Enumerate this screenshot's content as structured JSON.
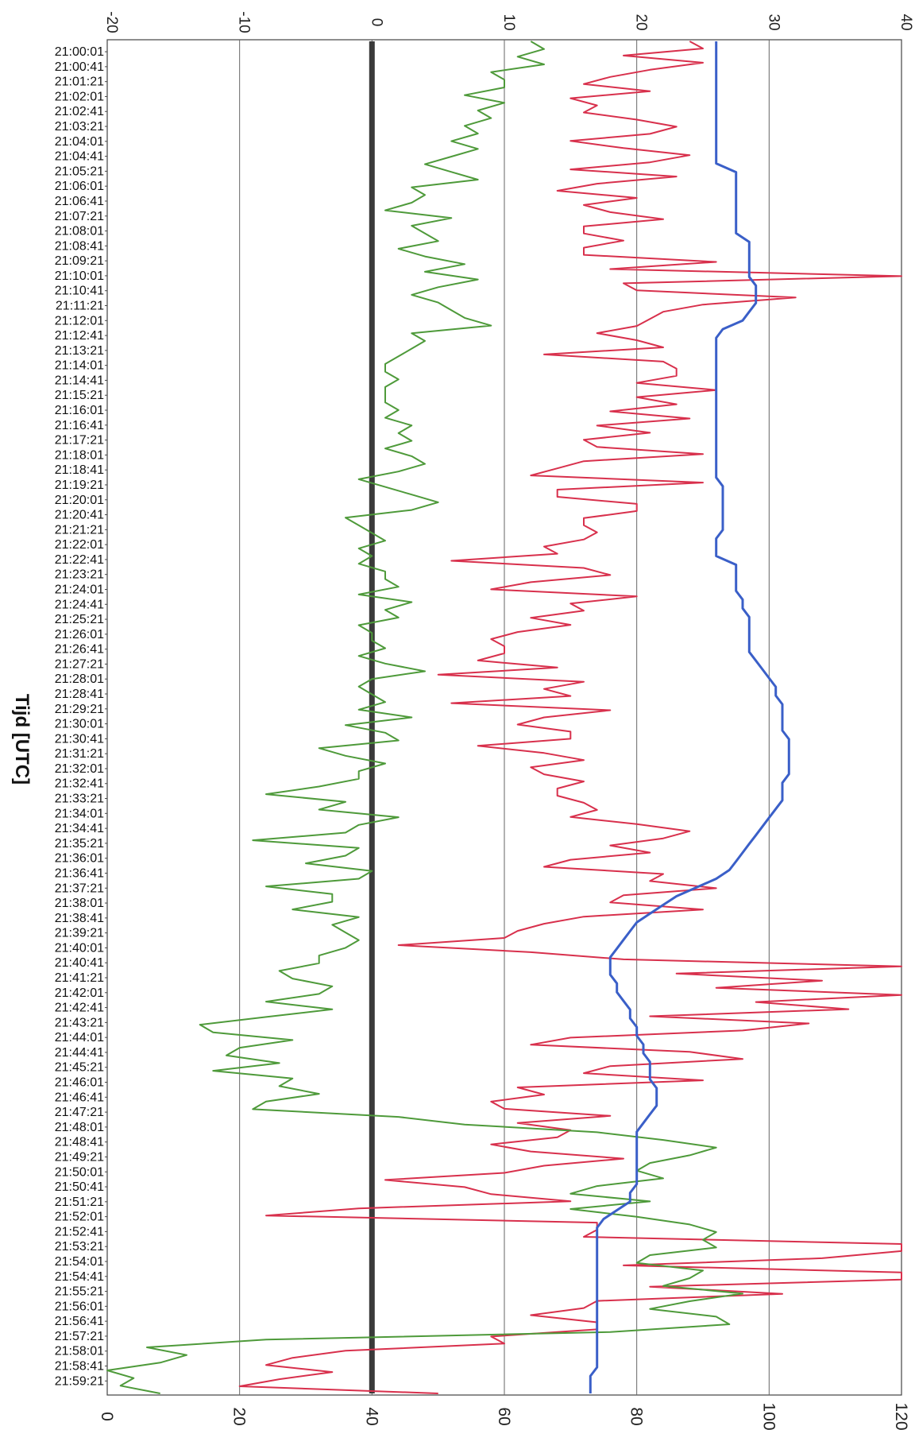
{
  "chart_data": {
    "type": "line",
    "orientation": "rotated-90-clockwise",
    "title": "",
    "xlabel": "Tijd [UTC]",
    "grid": true,
    "top_axis": {
      "ticks": [
        "-20",
        "-10",
        "0",
        "10",
        "20",
        "30",
        "40"
      ],
      "range": [
        -20,
        40
      ]
    },
    "bottom_axis": {
      "ticks": [
        "0",
        "20",
        "40",
        "60",
        "80",
        "100",
        "120"
      ],
      "range": [
        0,
        120
      ]
    },
    "time_labels": [
      "21:00:01",
      "21:00:41",
      "21:01:21",
      "21:02:01",
      "21:02:41",
      "21:03:21",
      "21:04:01",
      "21:04:41",
      "21:05:21",
      "21:06:01",
      "21:06:41",
      "21:07:21",
      "21:08:01",
      "21:08:41",
      "21:09:21",
      "21:10:01",
      "21:10:41",
      "21:11:21",
      "21:12:01",
      "21:12:41",
      "21:13:21",
      "21:14:01",
      "21:14:41",
      "21:15:21",
      "21:16:01",
      "21:16:41",
      "21:17:21",
      "21:18:01",
      "21:18:41",
      "21:19:21",
      "21:20:01",
      "21:20:41",
      "21:21:21",
      "21:22:01",
      "21:22:41",
      "21:23:21",
      "21:24:01",
      "21:24:41",
      "21:25:21",
      "21:26:01",
      "21:26:41",
      "21:27:21",
      "21:28:01",
      "21:28:41",
      "21:29:21",
      "21:30:01",
      "21:30:41",
      "21:31:21",
      "21:32:01",
      "21:32:41",
      "21:33:21",
      "21:34:01",
      "21:34:41",
      "21:35:21",
      "21:36:01",
      "21:36:41",
      "21:37:21",
      "21:38:01",
      "21:38:41",
      "21:39:21",
      "21:40:01",
      "21:40:41",
      "21:41:21",
      "21:42:01",
      "21:42:41",
      "21:43:21",
      "21:44:01",
      "21:44:41",
      "21:45:21",
      "21:46:01",
      "21:46:41",
      "21:47:21",
      "21:48:01",
      "21:48:41",
      "21:49:21",
      "21:50:01",
      "21:50:41",
      "21:51:21",
      "21:52:01",
      "21:52:41",
      "21:53:21",
      "21:54:01",
      "21:54:41",
      "21:55:21",
      "21:56:01",
      "21:56:41",
      "21:57:21",
      "21:58:01",
      "21:58:41",
      "21:59:21"
    ],
    "series": [
      {
        "axis": "bottom",
        "color": "#3a5fc8",
        "values": [
          92,
          92,
          92,
          92,
          92,
          92,
          92,
          92,
          92,
          92,
          92,
          92,
          92,
          92,
          92,
          95,
          95,
          95,
          95,
          95,
          95,
          95,
          95,
          97,
          97,
          97,
          97,
          97,
          98,
          98,
          98,
          97,
          96,
          93,
          92,
          92,
          92,
          92,
          92,
          92,
          92,
          92,
          92,
          92,
          92,
          92,
          92,
          92,
          92,
          92,
          92,
          93,
          93,
          93,
          93,
          93,
          93,
          92,
          92,
          92,
          95,
          95,
          95,
          95,
          96,
          96,
          97,
          97,
          97,
          97,
          97,
          98,
          99,
          100,
          101,
          101,
          102,
          102,
          102,
          102,
          103,
          103,
          103,
          103,
          103,
          102,
          102,
          102,
          101,
          100,
          99,
          98,
          97,
          96,
          95,
          94,
          92,
          89,
          86,
          84,
          82,
          80,
          79,
          78,
          77,
          76,
          76,
          76,
          77,
          77,
          78,
          79,
          79,
          80,
          80,
          81,
          81,
          82,
          82,
          82,
          83,
          83,
          83,
          82,
          81,
          80,
          80,
          80,
          80,
          80,
          80,
          80,
          79,
          79,
          77,
          75,
          74,
          74,
          74,
          74,
          74,
          74,
          74,
          74,
          74,
          74,
          74,
          74,
          74,
          74,
          74,
          74,
          74,
          73,
          73,
          73
        ]
      },
      {
        "axis": "top",
        "color": "#d8304c",
        "values": [
          24,
          25,
          19,
          25,
          21,
          18,
          16,
          21,
          15,
          17,
          16,
          20,
          23,
          21,
          15,
          19,
          24,
          21,
          15,
          23,
          17,
          14,
          20,
          16,
          18,
          22,
          16,
          16,
          19,
          16,
          16,
          26,
          18,
          40,
          19,
          20,
          32,
          25,
          22,
          21,
          20,
          17,
          20,
          22,
          13,
          22,
          23,
          23,
          20,
          26,
          20,
          23,
          18,
          24,
          17,
          21,
          16,
          17,
          25,
          16,
          14,
          12,
          25,
          14,
          14,
          20,
          20,
          16,
          16,
          17,
          16,
          13,
          14,
          6,
          16,
          18,
          12,
          9,
          20,
          15,
          16,
          12,
          15,
          11,
          9,
          10,
          10,
          8,
          14,
          5,
          16,
          13,
          15,
          6,
          18,
          13,
          11,
          15,
          15,
          8,
          13,
          16,
          12,
          13,
          16,
          14,
          14,
          16,
          17,
          15,
          20,
          24,
          22,
          18,
          21,
          15,
          13,
          22,
          21,
          26,
          19,
          18,
          25,
          16,
          13,
          11,
          10,
          2,
          12,
          19,
          40,
          23,
          34,
          26,
          40,
          29,
          36,
          21,
          33,
          28,
          15,
          12,
          24,
          28,
          18,
          16,
          25,
          11,
          13,
          9,
          10,
          18,
          11,
          15,
          14,
          9,
          12,
          19,
          13,
          10,
          1,
          7,
          9,
          15,
          -1,
          -8,
          17,
          17,
          16,
          40,
          40,
          34,
          19,
          40,
          40,
          21,
          31,
          17,
          16,
          12,
          17,
          17,
          9,
          10,
          -2,
          -6,
          -8,
          -3,
          -7,
          -10,
          5
        ]
      },
      {
        "axis": "top",
        "color": "#4e9a3a",
        "values": [
          12,
          13,
          11,
          13,
          9,
          10,
          10,
          7,
          10,
          8,
          9,
          7,
          8,
          6,
          8,
          6,
          4,
          6,
          8,
          3,
          4,
          3,
          1,
          6,
          3,
          4,
          5,
          2,
          4,
          7,
          4,
          8,
          5,
          3,
          5,
          6,
          7,
          9,
          3,
          4,
          3,
          2,
          1,
          1,
          2,
          1,
          1,
          1,
          2,
          1,
          3,
          2,
          3,
          1,
          3,
          4,
          2,
          -1,
          1,
          3,
          5,
          3,
          -2,
          -1,
          0,
          1,
          -1,
          0,
          -1,
          1,
          1,
          2,
          -1,
          3,
          1,
          2,
          -1,
          0,
          0,
          1,
          -1,
          1,
          4,
          0,
          -1,
          0,
          1,
          -1,
          3,
          -2,
          1,
          2,
          -4,
          -2,
          1,
          -1,
          -1,
          -4,
          -8,
          -2,
          -4,
          2,
          -1,
          -2,
          -9,
          -1,
          -2,
          -5,
          0,
          -1,
          -8,
          -3,
          -3,
          -6,
          -1,
          -3,
          -2,
          -1,
          -2,
          -4,
          -4,
          -7,
          -6,
          -3,
          -4,
          -8,
          -3,
          -8,
          -13,
          -12,
          -6,
          -10,
          -11,
          -7,
          -12,
          -6,
          -7,
          -4,
          -8,
          -9,
          2,
          7,
          17,
          22,
          26,
          24,
          21,
          20,
          22,
          17,
          15,
          21,
          15,
          20,
          24,
          26,
          25,
          26,
          21,
          20,
          25,
          24,
          22,
          28,
          24,
          21,
          26,
          27,
          18,
          -8,
          -17,
          -14,
          -16,
          -20,
          -18,
          -19,
          -16
        ]
      },
      {
        "axis": "top",
        "color": "#3a3a3a",
        "values": [
          0,
          0,
          0,
          0,
          0,
          0,
          0,
          0,
          0,
          0,
          0,
          0,
          0,
          0,
          0,
          0,
          0,
          0,
          0,
          0,
          0,
          0,
          0,
          0,
          0,
          0,
          0,
          0,
          0,
          0,
          0,
          0,
          0,
          0,
          0,
          0,
          0,
          0,
          0,
          0,
          0,
          0,
          0,
          0,
          0,
          0,
          0,
          0,
          0,
          0,
          0,
          0,
          0,
          0,
          0,
          0,
          0,
          0,
          0,
          0,
          0,
          0,
          0,
          0,
          0,
          0,
          0,
          0,
          0,
          0,
          0,
          0,
          0,
          0,
          0,
          0,
          0,
          0,
          0,
          0,
          0,
          0,
          0,
          0,
          0,
          0,
          0,
          0,
          0,
          0,
          0,
          0,
          0,
          0,
          0,
          0,
          0,
          0,
          0,
          0,
          0,
          0,
          0,
          0,
          0,
          0,
          0,
          0,
          0,
          0,
          0,
          0,
          0,
          0,
          0,
          0,
          0,
          0,
          0,
          0,
          0,
          0,
          0,
          0,
          0,
          0,
          0,
          0,
          0,
          0,
          0,
          0,
          0,
          0,
          0,
          0,
          0,
          0,
          0,
          0,
          0,
          0,
          0,
          0,
          0,
          0,
          0,
          0,
          0,
          0,
          0,
          0,
          0,
          0,
          0,
          0,
          0,
          0,
          0,
          0,
          0,
          0,
          0,
          0,
          0,
          0,
          0,
          0,
          0,
          0,
          0,
          0,
          0,
          0,
          0,
          0,
          0,
          0,
          0,
          0,
          0,
          0,
          0,
          0,
          0,
          0
        ]
      }
    ]
  }
}
